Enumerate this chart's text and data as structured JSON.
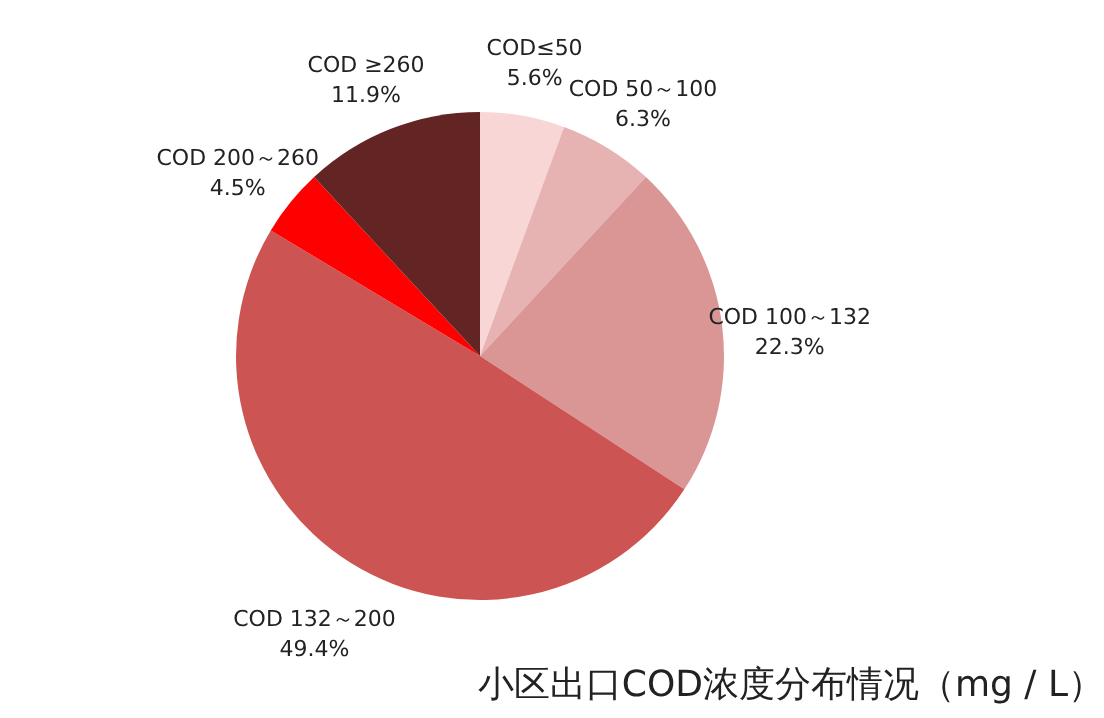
{
  "chart_data": {
    "type": "pie",
    "title": "小区出口COD浓度分布情况（mg / L）",
    "categories": [
      "COD≤50",
      "COD 50～100",
      "COD 100～132",
      "COD 132～200",
      "COD 200～260",
      "COD ≥260"
    ],
    "values": [
      5.6,
      6.3,
      22.3,
      49.4,
      4.5,
      11.9
    ],
    "colors": [
      "#f9d6d6",
      "#e6b3b2",
      "#d99695",
      "#cc5553",
      "#ff0000",
      "#632523"
    ],
    "value_labels": [
      "5.6%",
      "6.3%",
      "22.3%",
      "49.4%",
      "4.5%",
      "11.9%"
    ]
  }
}
